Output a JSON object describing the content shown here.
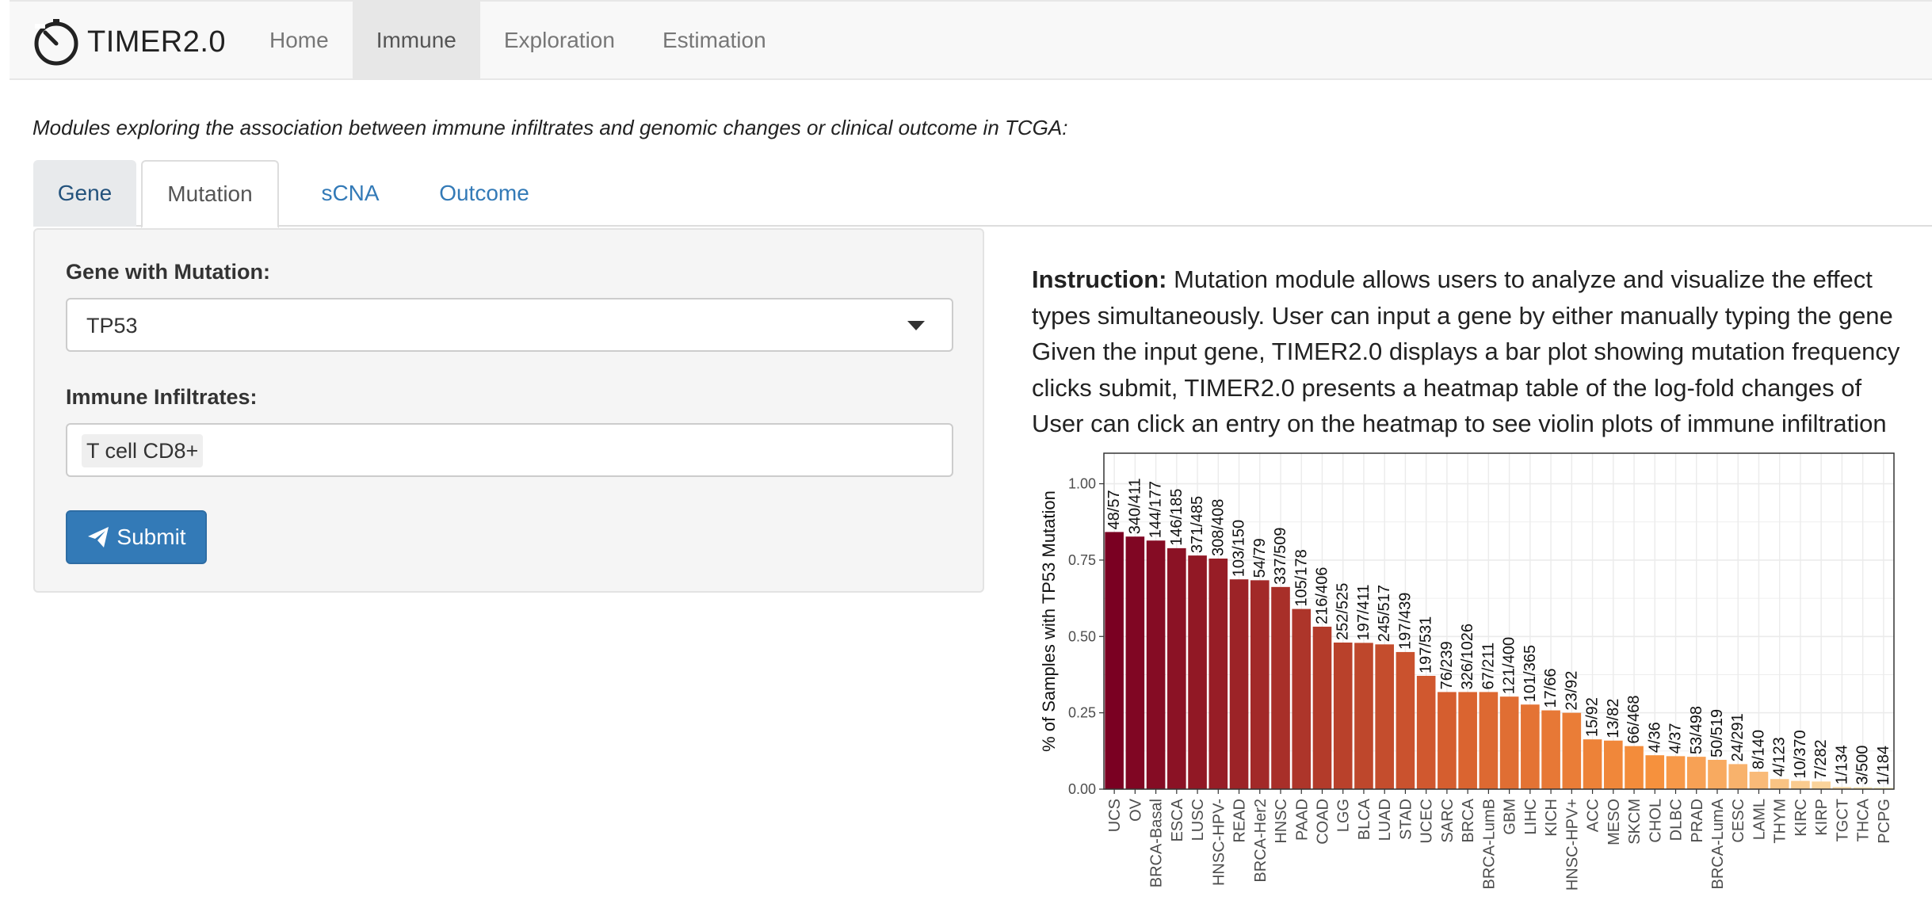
{
  "brand": {
    "name": "TIMER2.0",
    "logo_icon": "timer-icon"
  },
  "nav": {
    "items": [
      {
        "label": "Home",
        "active": false
      },
      {
        "label": "Immune",
        "active": true
      },
      {
        "label": "Exploration",
        "active": false
      },
      {
        "label": "Estimation",
        "active": false
      }
    ]
  },
  "subtitle": "Modules exploring the association between immune infiltrates and genomic changes or clinical outcome in TCGA:",
  "tabs": {
    "items": [
      {
        "label": "Gene"
      },
      {
        "label": "Mutation",
        "active": true
      },
      {
        "label": "sCNA"
      },
      {
        "label": "Outcome"
      }
    ]
  },
  "form": {
    "gene_label": "Gene with Mutation:",
    "gene_value": "TP53",
    "infiltrates_label": "Immune Infiltrates:",
    "infiltrates_value": "T cell CD8+",
    "submit_label": "Submit",
    "submit_icon": "paper-plane-icon"
  },
  "instruction": {
    "bold": "Instruction:",
    "lines": [
      " Mutation module allows users to analyze and visualize the effect",
      "types simultaneously. User can input a gene by either manually typing the gene",
      "Given the input gene, TIMER2.0 displays a bar plot showing mutation frequency",
      "clicks submit, TIMER2.0 presents a heatmap table of the log-fold changes of",
      "User can click an entry on the heatmap to see violin plots of immune infiltration"
    ]
  },
  "colors": {
    "accent": "#337ab7",
    "bar_high": "#7a0022",
    "bar_mid": "#f28c38",
    "bar_low": "#fce7b8"
  },
  "chart_data": {
    "type": "bar",
    "ylabel": "% of Samples with TP53 Mutation",
    "ylim": [
      0,
      1.1
    ],
    "yticks": [
      "0.00",
      "0.25",
      "0.50",
      "0.75",
      "1.00"
    ],
    "grid": true,
    "categories": [
      "UCS",
      "OV",
      "BRCA-Basal",
      "ESCA",
      "LUSC",
      "HNSC-HPV-",
      "READ",
      "BRCA-Her2",
      "HNSC",
      "PAAD",
      "COAD",
      "LGG",
      "BLCA",
      "LUAD",
      "STAD",
      "UCEC",
      "SARC",
      "BRCA",
      "BRCA-LumB",
      "GBM",
      "LIHC",
      "KICH",
      "HNSC-HPV+",
      "ACC",
      "MESO",
      "SKCM",
      "CHOL",
      "DLBC",
      "PRAD",
      "BRCA-LumA",
      "CESC",
      "LAML",
      "THYM",
      "KIRC",
      "KIRP",
      "TGCT",
      "THCA",
      "PCPG"
    ],
    "labels": [
      "48/57",
      "340/411",
      "144/177",
      "146/185",
      "371/485",
      "308/408",
      "103/150",
      "54/79",
      "337/509",
      "105/178",
      "216/406",
      "252/525",
      "197/411",
      "245/517",
      "197/439",
      "197/531",
      "76/239",
      "326/1026",
      "67/211",
      "121/400",
      "101/365",
      "17/66",
      "23/92",
      "15/92",
      "13/82",
      "66/468",
      "4/36",
      "4/37",
      "53/498",
      "50/519",
      "24/291",
      "8/140",
      "4/123",
      "10/370",
      "7/282",
      "1/134",
      "3/500",
      "1/184"
    ],
    "values": [
      0.842,
      0.827,
      0.814,
      0.789,
      0.765,
      0.755,
      0.687,
      0.684,
      0.662,
      0.59,
      0.532,
      0.48,
      0.479,
      0.474,
      0.449,
      0.371,
      0.318,
      0.318,
      0.318,
      0.303,
      0.277,
      0.258,
      0.25,
      0.163,
      0.159,
      0.141,
      0.111,
      0.108,
      0.106,
      0.096,
      0.082,
      0.057,
      0.033,
      0.027,
      0.025,
      0.007,
      0.006,
      0.005
    ]
  }
}
